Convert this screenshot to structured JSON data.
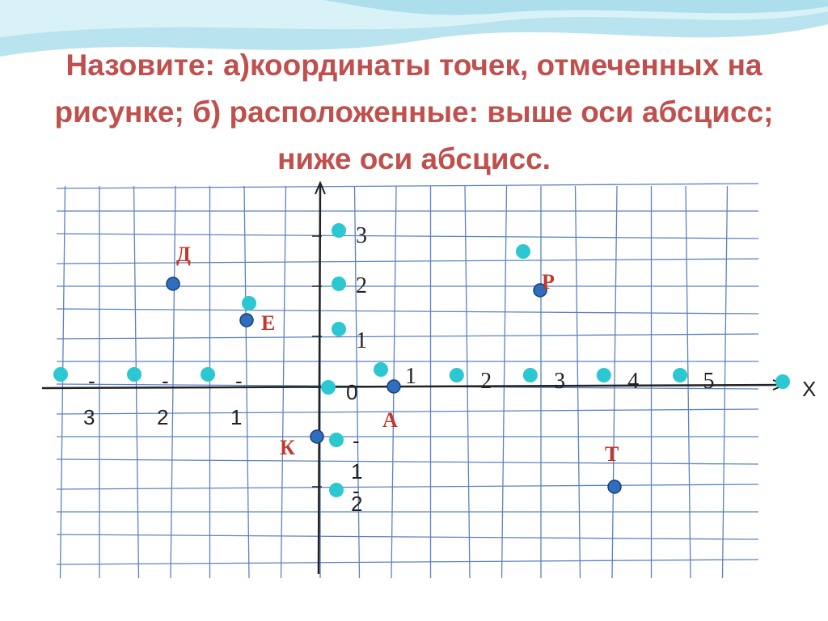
{
  "title": "Назовите: а)координаты точек, отмеченных на рисунке; б) расположенные: выше оси абсцисс; ниже оси абсцисс.",
  "axes": {
    "x_axis_label": "X",
    "origin_label": "0",
    "x_tick_labels": [
      {
        "value": -3,
        "minus": "-",
        "digit": "3"
      },
      {
        "value": -2,
        "minus": "-",
        "digit": "2"
      },
      {
        "value": -1,
        "minus": "-",
        "digit": "1"
      },
      {
        "value": 1,
        "text": "1"
      },
      {
        "value": 2,
        "text": "2"
      },
      {
        "value": 3,
        "text": "3"
      },
      {
        "value": 4,
        "text": "4"
      },
      {
        "value": 5,
        "text": "5"
      }
    ],
    "y_tick_labels": [
      {
        "value": 3,
        "text": "3"
      },
      {
        "value": 2,
        "text": "2"
      },
      {
        "value": 1,
        "text": "1"
      },
      {
        "value": -1,
        "minus": "-",
        "digit": "1"
      },
      {
        "value": -2,
        "minus": "-",
        "digit": "2"
      }
    ]
  },
  "points": [
    {
      "name": "Д",
      "x": -2,
      "y": 2
    },
    {
      "name": "Е",
      "x": -1,
      "y": 1
    },
    {
      "name": "Р",
      "x": 3,
      "y": 2
    },
    {
      "name": "А",
      "x": 1,
      "y": 0
    },
    {
      "name": "К",
      "x": 0,
      "y": -1
    },
    {
      "name": "Т",
      "x": 4,
      "y": -2
    }
  ],
  "colors": {
    "title": "#c0504d",
    "grid": "#5b82c4",
    "axis": "#222222",
    "point": "#2f6dbf",
    "point_stroke": "#1a3f73",
    "marker": "#2bc8d2",
    "point_label": "#c0392b"
  }
}
